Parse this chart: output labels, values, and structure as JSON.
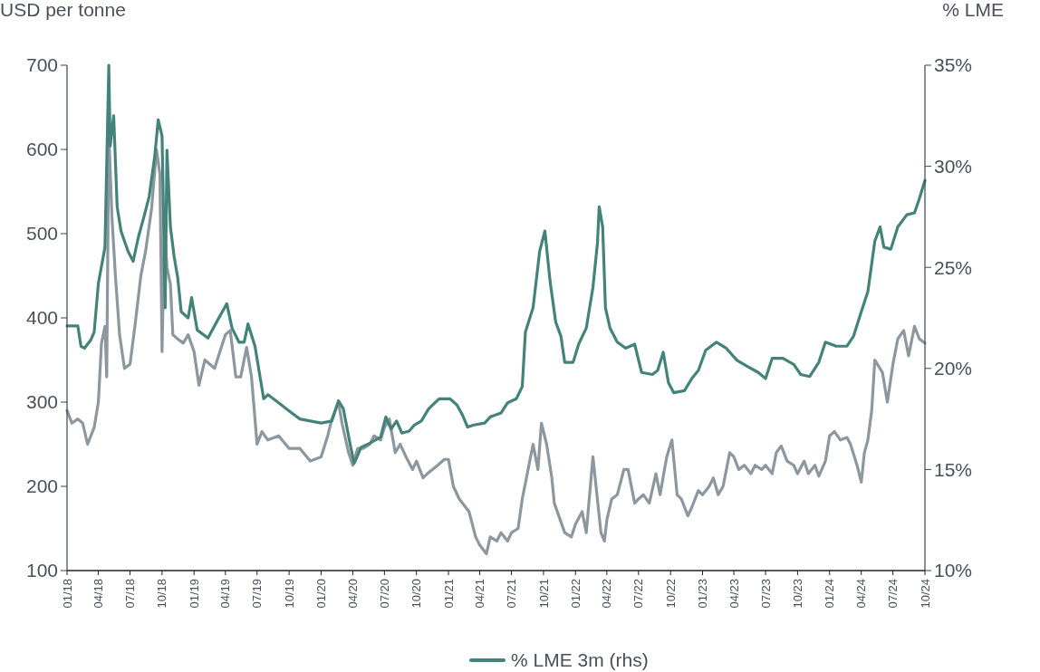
{
  "chart_data": {
    "type": "line",
    "ylabel": "USD per tonne",
    "y2label": "% LME",
    "legend": "bottom",
    "grid": false,
    "line_style": "solid",
    "marker": "none",
    "xlim": [
      "2018-01-01",
      "2024-10-01"
    ],
    "xticks": [
      {
        "value": "2018-01",
        "label": "01/18"
      },
      {
        "value": "2018-04",
        "label": "04/18"
      },
      {
        "value": "2018-07",
        "label": "07/18"
      },
      {
        "value": "2018-10",
        "label": "10/18"
      },
      {
        "value": "2019-01",
        "label": "01/19"
      },
      {
        "value": "2019-04",
        "label": "04/19"
      },
      {
        "value": "2019-07",
        "label": "07/19"
      },
      {
        "value": "2019-10",
        "label": "10/19"
      },
      {
        "value": "2020-01",
        "label": "01/20"
      },
      {
        "value": "2020-04",
        "label": "04/20"
      },
      {
        "value": "2020-07",
        "label": "07/20"
      },
      {
        "value": "2020-10",
        "label": "10/20"
      },
      {
        "value": "2021-01",
        "label": "01/21"
      },
      {
        "value": "2021-04",
        "label": "04/21"
      },
      {
        "value": "2021-07",
        "label": "07/21"
      },
      {
        "value": "2021-10",
        "label": "10/21"
      },
      {
        "value": "2022-01",
        "label": "01/22"
      },
      {
        "value": "2022-04",
        "label": "04/22"
      },
      {
        "value": "2022-07",
        "label": "07/22"
      },
      {
        "value": "2022-10",
        "label": "10/22"
      },
      {
        "value": "2023-01",
        "label": "01/23"
      },
      {
        "value": "2023-04",
        "label": "04/23"
      },
      {
        "value": "2023-07",
        "label": "07/23"
      },
      {
        "value": "2023-10",
        "label": "10/23"
      },
      {
        "value": "2024-01",
        "label": "01/24"
      },
      {
        "value": "2024-04",
        "label": "04/24"
      },
      {
        "value": "2024-07",
        "label": "07/24"
      },
      {
        "value": "2024-10",
        "label": "10/24"
      }
    ],
    "ylim": [
      100,
      700
    ],
    "yticks": [
      100,
      200,
      300,
      400,
      500,
      600,
      700
    ],
    "y2lim": [
      10,
      35
    ],
    "y2ticks": [
      {
        "value": 10,
        "label": "10%"
      },
      {
        "value": 15,
        "label": "15%"
      },
      {
        "value": 20,
        "label": "20%"
      },
      {
        "value": 25,
        "label": "25%"
      },
      {
        "value": 30,
        "label": "30%"
      },
      {
        "value": 35,
        "label": "35%"
      }
    ],
    "series": [
      {
        "color": "#8c979f",
        "x": [
          "2018-01-01",
          "2018-01-15",
          "2018-02-01",
          "2018-02-15",
          "2018-03-01",
          "2018-03-20",
          "2018-04-01",
          "2018-04-10",
          "2018-04-20",
          "2018-04-25",
          "2018-05-01",
          "2018-05-10",
          "2018-05-20",
          "2018-06-01",
          "2018-06-15",
          "2018-07-01",
          "2018-07-15",
          "2018-08-01",
          "2018-08-15",
          "2018-09-01",
          "2018-09-15",
          "2018-09-25",
          "2018-10-01",
          "2018-10-08",
          "2018-10-15",
          "2018-10-25",
          "2018-11-01",
          "2018-11-15",
          "2018-12-01",
          "2018-12-15",
          "2019-01-01",
          "2019-01-15",
          "2019-02-01",
          "2019-03-01",
          "2019-04-01",
          "2019-04-15",
          "2019-05-01",
          "2019-05-15",
          "2019-06-01",
          "2019-06-15",
          "2019-07-01",
          "2019-07-15",
          "2019-08-01",
          "2019-09-01",
          "2019-10-01",
          "2019-11-01",
          "2019-12-01",
          "2020-01-01",
          "2020-01-20",
          "2020-02-01",
          "2020-02-20",
          "2020-03-01",
          "2020-03-20",
          "2020-04-01",
          "2020-04-15",
          "2020-05-01",
          "2020-05-20",
          "2020-06-01",
          "2020-06-20",
          "2020-07-01",
          "2020-07-15",
          "2020-08-01",
          "2020-08-15",
          "2020-09-01",
          "2020-09-20",
          "2020-10-01",
          "2020-10-20",
          "2020-11-01",
          "2020-12-01",
          "2020-12-20",
          "2021-01-01",
          "2021-01-15",
          "2021-02-01",
          "2021-03-01",
          "2021-03-20",
          "2021-04-01",
          "2021-04-20",
          "2021-05-01",
          "2021-05-20",
          "2021-06-01",
          "2021-06-20",
          "2021-07-01",
          "2021-07-20",
          "2021-08-01",
          "2021-09-01",
          "2021-09-15",
          "2021-09-25",
          "2021-10-10",
          "2021-10-25",
          "2021-11-01",
          "2021-12-01",
          "2021-12-20",
          "2022-01-01",
          "2022-01-20",
          "2022-02-01",
          "2022-02-20",
          "2022-03-01",
          "2022-03-15",
          "2022-03-25",
          "2022-04-01",
          "2022-04-15",
          "2022-05-01",
          "2022-05-20",
          "2022-06-01",
          "2022-06-20",
          "2022-07-01",
          "2022-07-15",
          "2022-08-01",
          "2022-08-20",
          "2022-09-01",
          "2022-09-20",
          "2022-10-05",
          "2022-10-20",
          "2022-11-01",
          "2022-11-20",
          "2022-12-01",
          "2022-12-20",
          "2023-01-01",
          "2023-01-20",
          "2023-02-01",
          "2023-02-15",
          "2023-03-01",
          "2023-03-20",
          "2023-04-01",
          "2023-04-15",
          "2023-05-01",
          "2023-05-20",
          "2023-06-01",
          "2023-06-20",
          "2023-07-01",
          "2023-07-20",
          "2023-08-01",
          "2023-08-15",
          "2023-09-01",
          "2023-09-20",
          "2023-10-01",
          "2023-10-20",
          "2023-11-01",
          "2023-11-20",
          "2023-12-01",
          "2023-12-20",
          "2024-01-01",
          "2024-01-15",
          "2024-02-01",
          "2024-02-20",
          "2024-03-01",
          "2024-03-20",
          "2024-04-01",
          "2024-04-10",
          "2024-04-20",
          "2024-05-01",
          "2024-05-10",
          "2024-06-01",
          "2024-06-15",
          "2024-07-01",
          "2024-07-15",
          "2024-08-01",
          "2024-08-15",
          "2024-09-01",
          "2024-09-15",
          "2024-10-01"
        ],
        "values": [
          290,
          275,
          280,
          275,
          250,
          270,
          300,
          370,
          390,
          330,
          620,
          520,
          450,
          380,
          340,
          345,
          390,
          450,
          480,
          530,
          600,
          570,
          360,
          510,
          460,
          440,
          380,
          375,
          370,
          380,
          360,
          320,
          350,
          340,
          380,
          385,
          330,
          330,
          365,
          330,
          250,
          265,
          255,
          260,
          245,
          245,
          230,
          235,
          260,
          280,
          300,
          275,
          240,
          225,
          245,
          245,
          250,
          260,
          255,
          270,
          280,
          240,
          250,
          235,
          220,
          230,
          210,
          215,
          225,
          232,
          232,
          200,
          185,
          170,
          140,
          130,
          120,
          140,
          135,
          145,
          135,
          145,
          150,
          185,
          250,
          220,
          275,
          250,
          210,
          180,
          145,
          140,
          155,
          170,
          145,
          235,
          200,
          145,
          135,
          160,
          185,
          190,
          220,
          220,
          180,
          185,
          190,
          180,
          215,
          190,
          235,
          255,
          190,
          185,
          165,
          175,
          195,
          190,
          200,
          210,
          190,
          200,
          240,
          235,
          220,
          225,
          215,
          225,
          220,
          225,
          215,
          240,
          248,
          230,
          225,
          215,
          230,
          215,
          225,
          212,
          230,
          260,
          265,
          255,
          258,
          250,
          225,
          205,
          240,
          255,
          290,
          350,
          335,
          300,
          345,
          375,
          385,
          355,
          390,
          375,
          370
        ]
      },
      {
        "name": "% LME 3m (rhs)",
        "color": "#43837a",
        "axis": "y2",
        "x": [
          "2018-01-01",
          "2018-02-01",
          "2018-02-10",
          "2018-02-20",
          "2018-03-10",
          "2018-03-20",
          "2018-04-01",
          "2018-04-20",
          "2018-05-01",
          "2018-05-05",
          "2018-05-15",
          "2018-05-25",
          "2018-06-05",
          "2018-06-25",
          "2018-07-10",
          "2018-07-25",
          "2018-08-10",
          "2018-08-25",
          "2018-09-10",
          "2018-09-20",
          "2018-10-01",
          "2018-10-10",
          "2018-10-15",
          "2018-10-25",
          "2018-11-05",
          "2018-11-15",
          "2018-11-25",
          "2018-12-15",
          "2018-12-25",
          "2019-01-10",
          "2019-02-10",
          "2019-03-10",
          "2019-04-05",
          "2019-04-20",
          "2019-05-10",
          "2019-05-25",
          "2019-06-05",
          "2019-06-25",
          "2019-07-20",
          "2019-08-01",
          "2019-09-01",
          "2019-10-01",
          "2019-11-01",
          "2019-12-01",
          "2020-01-01",
          "2020-02-01",
          "2020-02-20",
          "2020-03-05",
          "2020-03-25",
          "2020-04-05",
          "2020-04-25",
          "2020-05-20",
          "2020-06-20",
          "2020-07-05",
          "2020-07-20",
          "2020-08-05",
          "2020-08-20",
          "2020-09-10",
          "2020-09-25",
          "2020-10-15",
          "2020-11-05",
          "2020-12-05",
          "2021-01-05",
          "2021-01-25",
          "2021-02-10",
          "2021-02-25",
          "2021-03-15",
          "2021-04-15",
          "2021-05-01",
          "2021-06-01",
          "2021-06-20",
          "2021-07-15",
          "2021-08-01",
          "2021-08-10",
          "2021-09-01",
          "2021-09-20",
          "2021-10-05",
          "2021-10-20",
          "2021-11-05",
          "2021-11-20",
          "2021-12-01",
          "2021-12-25",
          "2022-01-10",
          "2022-02-01",
          "2022-02-20",
          "2022-03-05",
          "2022-03-10",
          "2022-03-20",
          "2022-03-28",
          "2022-04-10",
          "2022-05-01",
          "2022-05-25",
          "2022-06-20",
          "2022-07-10",
          "2022-08-10",
          "2022-08-25",
          "2022-09-10",
          "2022-09-25",
          "2022-10-10",
          "2022-11-10",
          "2022-12-01",
          "2022-12-20",
          "2023-01-10",
          "2023-02-10",
          "2023-03-10",
          "2023-04-10",
          "2023-05-10",
          "2023-06-10",
          "2023-07-01",
          "2023-07-20",
          "2023-08-20",
          "2023-09-20",
          "2023-10-10",
          "2023-11-05",
          "2023-12-01",
          "2023-12-20",
          "2024-01-20",
          "2024-02-20",
          "2024-03-10",
          "2024-04-01",
          "2024-04-20",
          "2024-05-10",
          "2024-05-25",
          "2024-06-05",
          "2024-06-25",
          "2024-07-15",
          "2024-08-10",
          "2024-09-01",
          "2024-09-15",
          "2024-10-01"
        ],
        "values": [
          22.1,
          22.1,
          21.1,
          21.0,
          21.4,
          21.8,
          24.2,
          26,
          35,
          31,
          32.5,
          28,
          26.8,
          25.8,
          25.3,
          26.5,
          27.5,
          28.5,
          30.5,
          32.3,
          31.5,
          23,
          30.8,
          27,
          25.5,
          24.5,
          22.8,
          22.5,
          23.5,
          21.9,
          21.5,
          22.4,
          23.2,
          22.0,
          21.3,
          21.3,
          22.2,
          21.1,
          18.5,
          18.7,
          18.3,
          17.9,
          17.5,
          17.4,
          17.3,
          17.4,
          18.4,
          18.0,
          16.2,
          15.3,
          16.1,
          16.3,
          16.6,
          17.6,
          17.0,
          17.4,
          16.8,
          16.9,
          17.2,
          17.4,
          18.0,
          18.5,
          18.5,
          18.2,
          17.7,
          17.1,
          17.2,
          17.3,
          17.6,
          17.8,
          18.3,
          18.5,
          19.1,
          21.8,
          23,
          25.8,
          26.8,
          24.3,
          22.3,
          21.6,
          20.3,
          20.3,
          21.2,
          22.0,
          24.0,
          26.2,
          28.0,
          27.0,
          23.0,
          22.0,
          21.3,
          21.0,
          21.2,
          19.8,
          19.7,
          19.9,
          20.8,
          19.3,
          18.8,
          18.9,
          19.5,
          19.9,
          20.9,
          21.3,
          21.0,
          20.4,
          20.1,
          19.8,
          19.5,
          20.5,
          20.5,
          20.2,
          19.7,
          19.6,
          20.3,
          21.3,
          21.1,
          21.1,
          21.6,
          22.8,
          23.8,
          26.3,
          27.0,
          26.0,
          25.9,
          27.0,
          27.6,
          27.7,
          28.4,
          29.3
        ]
      }
    ]
  }
}
